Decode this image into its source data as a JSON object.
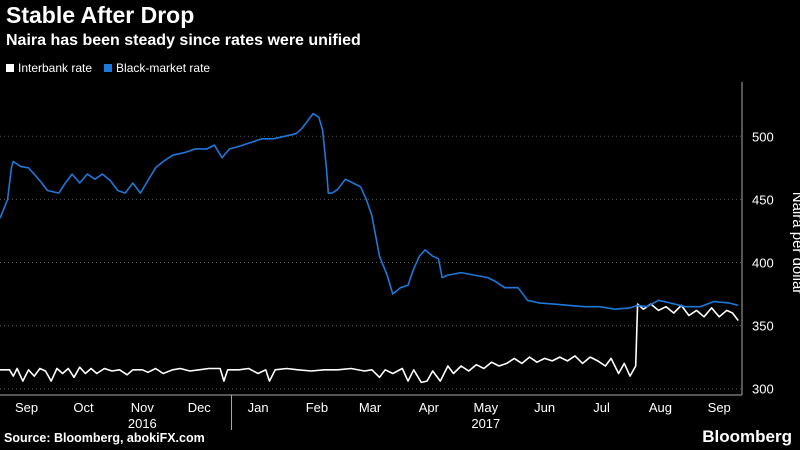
{
  "header": {
    "title": "Stable After Drop",
    "subtitle": "Naira has been steady since rates were unified"
  },
  "footer": {
    "source": "Source: Bloomberg, abokiFX.com",
    "brand": "Bloomberg"
  },
  "colors": {
    "interbank": "#ffffff",
    "black_market": "#1f77d8",
    "axis": "#aaaaaa"
  },
  "chart_data": {
    "type": "line",
    "title": "Stable After Drop",
    "subtitle": "Naira has been steady since rates were unified",
    "ylabel": "Naira per dollar",
    "ylim": [
      295,
      543
    ],
    "yticks": [
      300,
      350,
      400,
      450,
      500
    ],
    "xlim": [
      "2016-09-01",
      "2017-09-27"
    ],
    "x_tick_labels": [
      {
        "label": "Sep",
        "date": "2016-09-15"
      },
      {
        "label": "Oct",
        "date": "2016-10-15"
      },
      {
        "label": "Nov",
        "date": "2016-11-15"
      },
      {
        "label": "Dec",
        "date": "2016-12-15"
      },
      {
        "label": "Jan",
        "date": "2017-01-15"
      },
      {
        "label": "Feb",
        "date": "2017-02-15"
      },
      {
        "label": "Mar",
        "date": "2017-03-15"
      },
      {
        "label": "Apr",
        "date": "2017-04-15"
      },
      {
        "label": "May",
        "date": "2017-05-15"
      },
      {
        "label": "Jun",
        "date": "2017-06-15"
      },
      {
        "label": "Jul",
        "date": "2017-07-15"
      },
      {
        "label": "Aug",
        "date": "2017-08-15"
      },
      {
        "label": "Sep",
        "date": "2017-09-15"
      }
    ],
    "year_labels": [
      {
        "label": "2016",
        "date": "2016-11-15"
      },
      {
        "label": "2017",
        "date": "2017-05-15"
      }
    ],
    "year_divider_date": "2017-01-01",
    "legend": "top-left",
    "grid": "horizontal-dotted",
    "series": [
      {
        "name": "Interbank rate",
        "color": "#ffffff",
        "points": [
          [
            "2016-09-01",
            315
          ],
          [
            "2016-09-06",
            315
          ],
          [
            "2016-09-08",
            310
          ],
          [
            "2016-09-10",
            316
          ],
          [
            "2016-09-13",
            306
          ],
          [
            "2016-09-16",
            315
          ],
          [
            "2016-09-19",
            310
          ],
          [
            "2016-09-22",
            316
          ],
          [
            "2016-09-25",
            314
          ],
          [
            "2016-09-28",
            306
          ],
          [
            "2016-10-01",
            316
          ],
          [
            "2016-10-04",
            312
          ],
          [
            "2016-10-07",
            316
          ],
          [
            "2016-10-10",
            309
          ],
          [
            "2016-10-13",
            317
          ],
          [
            "2016-10-16",
            312
          ],
          [
            "2016-10-19",
            316
          ],
          [
            "2016-10-22",
            312
          ],
          [
            "2016-10-26",
            316
          ],
          [
            "2016-10-30",
            314
          ],
          [
            "2016-11-03",
            315
          ],
          [
            "2016-11-07",
            311
          ],
          [
            "2016-11-10",
            315
          ],
          [
            "2016-11-15",
            315
          ],
          [
            "2016-11-18",
            313
          ],
          [
            "2016-11-22",
            316
          ],
          [
            "2016-11-26",
            312
          ],
          [
            "2016-12-01",
            315
          ],
          [
            "2016-12-05",
            316
          ],
          [
            "2016-12-10",
            314
          ],
          [
            "2016-12-15",
            315
          ],
          [
            "2016-12-20",
            316
          ],
          [
            "2016-12-26",
            316
          ],
          [
            "2016-12-28",
            306
          ],
          [
            "2016-12-30",
            315
          ],
          [
            "2017-01-05",
            315
          ],
          [
            "2017-01-10",
            316
          ],
          [
            "2017-01-15",
            312
          ],
          [
            "2017-01-19",
            315
          ],
          [
            "2017-01-21",
            306
          ],
          [
            "2017-01-24",
            315
          ],
          [
            "2017-01-30",
            316
          ],
          [
            "2017-02-05",
            315
          ],
          [
            "2017-02-12",
            314
          ],
          [
            "2017-02-19",
            315
          ],
          [
            "2017-02-26",
            315
          ],
          [
            "2017-03-05",
            316
          ],
          [
            "2017-03-12",
            314
          ],
          [
            "2017-03-16",
            315
          ],
          [
            "2017-03-20",
            309
          ],
          [
            "2017-03-23",
            315
          ],
          [
            "2017-03-27",
            312
          ],
          [
            "2017-04-01",
            316
          ],
          [
            "2017-04-04",
            306
          ],
          [
            "2017-04-07",
            315
          ],
          [
            "2017-04-11",
            305
          ],
          [
            "2017-04-14",
            306
          ],
          [
            "2017-04-17",
            314
          ],
          [
            "2017-04-21",
            306
          ],
          [
            "2017-04-25",
            318
          ],
          [
            "2017-04-28",
            312
          ],
          [
            "2017-05-02",
            318
          ],
          [
            "2017-05-06",
            314
          ],
          [
            "2017-05-10",
            319
          ],
          [
            "2017-05-14",
            316
          ],
          [
            "2017-05-18",
            321
          ],
          [
            "2017-05-22",
            318
          ],
          [
            "2017-05-26",
            320
          ],
          [
            "2017-05-30",
            324
          ],
          [
            "2017-06-03",
            320
          ],
          [
            "2017-06-07",
            325
          ],
          [
            "2017-06-11",
            321
          ],
          [
            "2017-06-15",
            324
          ],
          [
            "2017-06-19",
            322
          ],
          [
            "2017-06-23",
            325
          ],
          [
            "2017-06-27",
            322
          ],
          [
            "2017-07-01",
            326
          ],
          [
            "2017-07-05",
            320
          ],
          [
            "2017-07-09",
            325
          ],
          [
            "2017-07-13",
            322
          ],
          [
            "2017-07-17",
            318
          ],
          [
            "2017-07-20",
            324
          ],
          [
            "2017-07-24",
            312
          ],
          [
            "2017-07-27",
            320
          ],
          [
            "2017-07-30",
            310
          ],
          [
            "2017-08-02",
            318
          ],
          [
            "2017-08-03",
            367
          ],
          [
            "2017-08-06",
            363
          ],
          [
            "2017-08-10",
            367
          ],
          [
            "2017-08-14",
            362
          ],
          [
            "2017-08-18",
            365
          ],
          [
            "2017-08-22",
            360
          ],
          [
            "2017-08-26",
            366
          ],
          [
            "2017-08-30",
            358
          ],
          [
            "2017-09-03",
            362
          ],
          [
            "2017-09-07",
            357
          ],
          [
            "2017-09-11",
            364
          ],
          [
            "2017-09-15",
            357
          ],
          [
            "2017-09-19",
            362
          ],
          [
            "2017-09-22",
            360
          ],
          [
            "2017-09-25",
            354
          ]
        ]
      },
      {
        "name": "Black-market rate",
        "color": "#1f77d8",
        "points": [
          [
            "2016-09-01",
            435
          ],
          [
            "2016-09-05",
            450
          ],
          [
            "2016-09-07",
            475
          ],
          [
            "2016-09-08",
            480
          ],
          [
            "2016-09-12",
            476
          ],
          [
            "2016-09-16",
            475
          ],
          [
            "2016-09-19",
            470
          ],
          [
            "2016-09-23",
            463
          ],
          [
            "2016-09-26",
            457
          ],
          [
            "2016-10-02",
            455
          ],
          [
            "2016-10-05",
            462
          ],
          [
            "2016-10-09",
            470
          ],
          [
            "2016-10-13",
            463
          ],
          [
            "2016-10-17",
            470
          ],
          [
            "2016-10-21",
            466
          ],
          [
            "2016-10-25",
            470
          ],
          [
            "2016-10-29",
            465
          ],
          [
            "2016-11-02",
            457
          ],
          [
            "2016-11-06",
            455
          ],
          [
            "2016-11-10",
            463
          ],
          [
            "2016-11-14",
            455
          ],
          [
            "2016-11-18",
            465
          ],
          [
            "2016-11-22",
            475
          ],
          [
            "2016-11-26",
            480
          ],
          [
            "2016-12-01",
            485
          ],
          [
            "2016-12-07",
            487
          ],
          [
            "2016-12-13",
            490
          ],
          [
            "2016-12-19",
            490
          ],
          [
            "2016-12-23",
            493
          ],
          [
            "2016-12-27",
            483
          ],
          [
            "2016-12-31",
            490
          ],
          [
            "2017-01-05",
            492
          ],
          [
            "2017-01-11",
            495
          ],
          [
            "2017-01-17",
            498
          ],
          [
            "2017-01-23",
            498
          ],
          [
            "2017-01-29",
            500
          ],
          [
            "2017-02-04",
            502
          ],
          [
            "2017-02-07",
            506
          ],
          [
            "2017-02-10",
            512
          ],
          [
            "2017-02-13",
            518
          ],
          [
            "2017-02-16",
            515
          ],
          [
            "2017-02-18",
            505
          ],
          [
            "2017-02-20",
            475
          ],
          [
            "2017-02-21",
            455
          ],
          [
            "2017-02-23",
            455
          ],
          [
            "2017-02-26",
            458
          ],
          [
            "2017-03-02",
            466
          ],
          [
            "2017-03-06",
            463
          ],
          [
            "2017-03-10",
            460
          ],
          [
            "2017-03-13",
            450
          ],
          [
            "2017-03-16",
            437
          ],
          [
            "2017-03-20",
            405
          ],
          [
            "2017-03-24",
            390
          ],
          [
            "2017-03-27",
            375
          ],
          [
            "2017-03-31",
            380
          ],
          [
            "2017-04-04",
            382
          ],
          [
            "2017-04-07",
            395
          ],
          [
            "2017-04-10",
            405
          ],
          [
            "2017-04-13",
            410
          ],
          [
            "2017-04-17",
            405
          ],
          [
            "2017-04-20",
            403
          ],
          [
            "2017-04-22",
            388
          ],
          [
            "2017-04-25",
            390
          ],
          [
            "2017-05-02",
            392
          ],
          [
            "2017-05-09",
            390
          ],
          [
            "2017-05-16",
            388
          ],
          [
            "2017-05-20",
            385
          ],
          [
            "2017-05-25",
            380
          ],
          [
            "2017-06-01",
            380
          ],
          [
            "2017-06-06",
            370
          ],
          [
            "2017-06-12",
            368
          ],
          [
            "2017-06-20",
            367
          ],
          [
            "2017-06-28",
            366
          ],
          [
            "2017-07-06",
            365
          ],
          [
            "2017-07-14",
            365
          ],
          [
            "2017-07-22",
            363
          ],
          [
            "2017-07-30",
            364
          ],
          [
            "2017-08-03",
            366
          ],
          [
            "2017-08-08",
            365
          ],
          [
            "2017-08-14",
            370
          ],
          [
            "2017-08-20",
            368
          ],
          [
            "2017-08-28",
            365
          ],
          [
            "2017-09-05",
            365
          ],
          [
            "2017-09-12",
            369
          ],
          [
            "2017-09-20",
            368
          ],
          [
            "2017-09-25",
            366
          ]
        ]
      }
    ]
  }
}
